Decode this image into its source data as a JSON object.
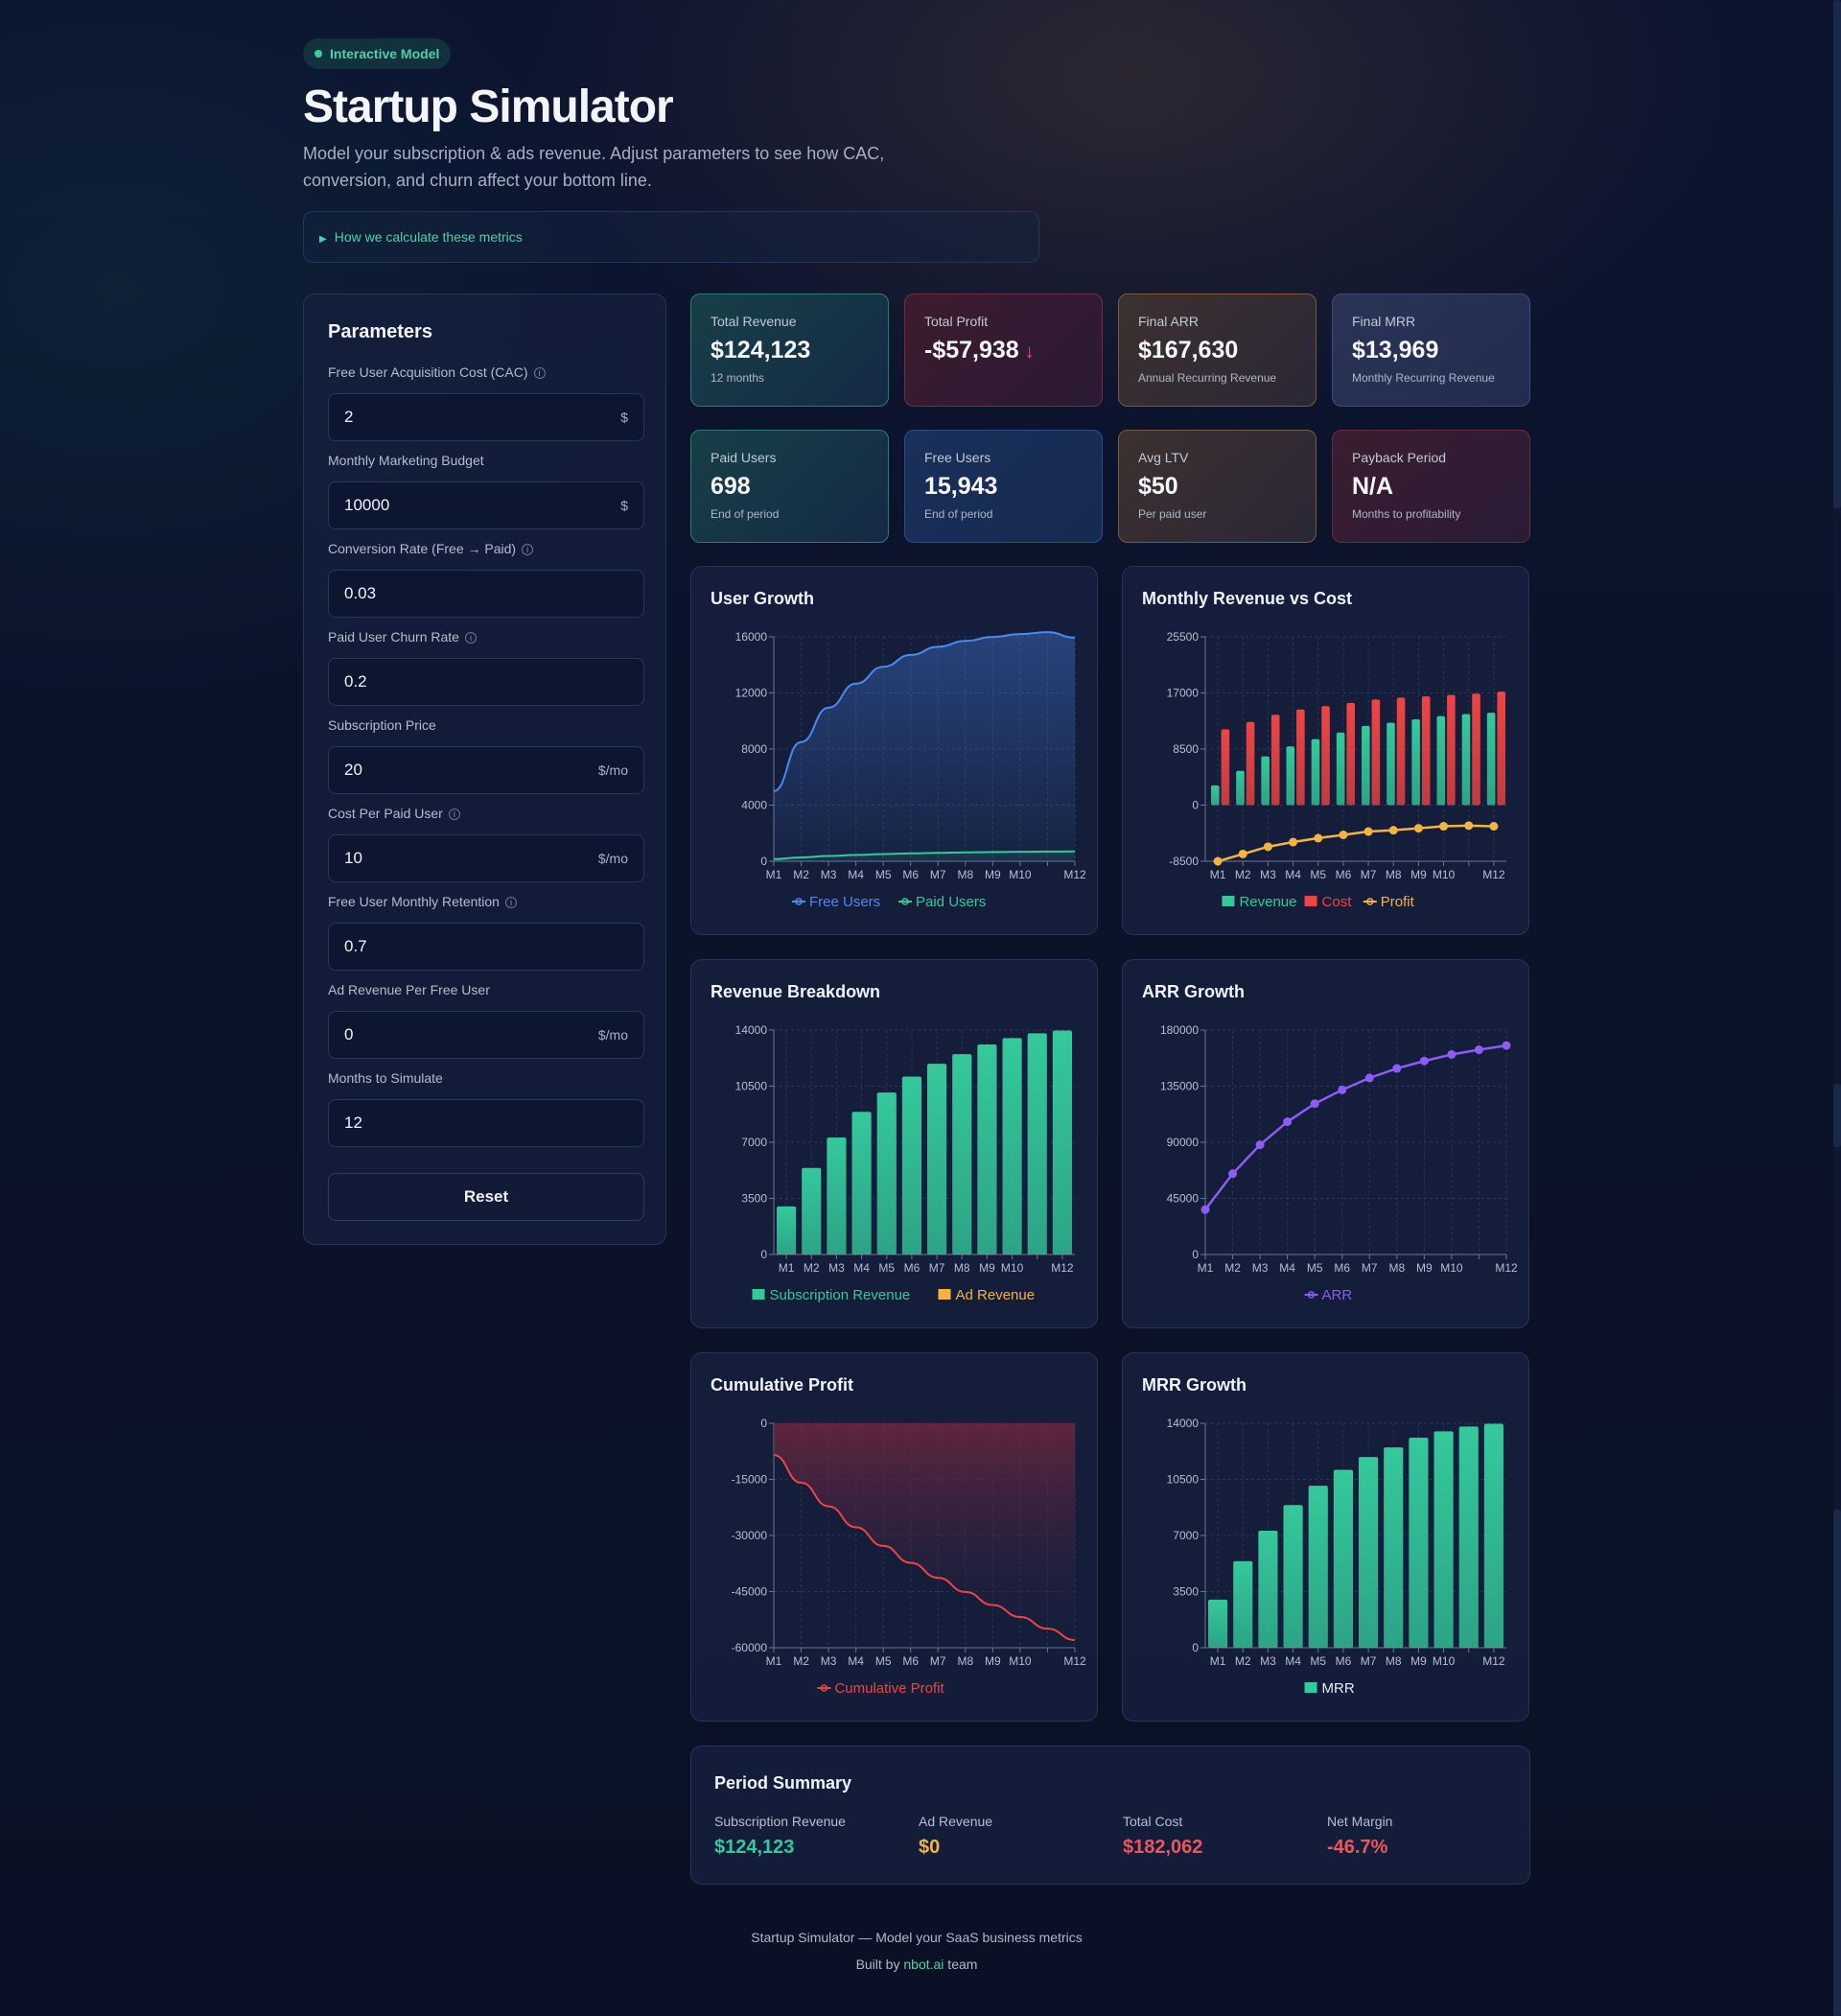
{
  "header": {
    "badge": "Interactive Model",
    "title": "Startup Simulator",
    "subtitle": "Model your subscription & ads revenue. Adjust parameters to see how CAC, conversion, and churn affect your bottom line.",
    "howto": "How we calculate these metrics"
  },
  "params": {
    "title": "Parameters",
    "fields": [
      {
        "label": "Free User Acquisition Cost (CAC)",
        "value": "2",
        "suffix": "$",
        "info": true
      },
      {
        "label": "Monthly Marketing Budget",
        "value": "10000",
        "suffix": "$",
        "info": false
      },
      {
        "label": "Conversion Rate (Free → Paid)",
        "value": "0.03",
        "suffix": "",
        "info": true
      },
      {
        "label": "Paid User Churn Rate",
        "value": "0.2",
        "suffix": "",
        "info": true
      },
      {
        "label": "Subscription Price",
        "value": "20",
        "suffix": "$/mo",
        "info": false
      },
      {
        "label": "Cost Per Paid User",
        "value": "10",
        "suffix": "$/mo",
        "info": true
      },
      {
        "label": "Free User Monthly Retention",
        "value": "0.7",
        "suffix": "",
        "info": true
      },
      {
        "label": "Ad Revenue Per Free User",
        "value": "0",
        "suffix": "$/mo",
        "info": false
      },
      {
        "label": "Months to Simulate",
        "value": "12",
        "suffix": "",
        "info": false
      }
    ],
    "reset": "Reset"
  },
  "cards": [
    {
      "label": "Total Revenue",
      "value": "$124,123",
      "sub": "12 months",
      "tone": "teal"
    },
    {
      "label": "Total Profit",
      "value": "-$57,938",
      "sub": "",
      "tone": "red",
      "arrow": "↓"
    },
    {
      "label": "Final ARR",
      "value": "$167,630",
      "sub": "Annual Recurring Revenue",
      "tone": "amber"
    },
    {
      "label": "Final MRR",
      "value": "$13,969",
      "sub": "Monthly Recurring Revenue",
      "tone": "slate"
    },
    {
      "label": "Paid Users",
      "value": "698",
      "sub": "End of period",
      "tone": "teal"
    },
    {
      "label": "Free Users",
      "value": "15,943",
      "sub": "End of period",
      "tone": "blue"
    },
    {
      "label": "Avg LTV",
      "value": "$50",
      "sub": "Per paid user",
      "tone": "amber"
    },
    {
      "label": "Payback Period",
      "value": "N/A",
      "sub": "Months to profitability",
      "tone": "rose"
    }
  ],
  "colors": {
    "teal": "#34c99b",
    "red": "#ef4444",
    "amber": "#f5b342",
    "blue": "#4a8bf0",
    "purple": "#8b5cf6",
    "bg": "#0b1329"
  },
  "chart_data": [
    {
      "id": "user-growth",
      "type": "area",
      "title": "User Growth",
      "x": [
        "M1",
        "M2",
        "M3",
        "M4",
        "M5",
        "M6",
        "M7",
        "M8",
        "M9",
        "M10",
        "M11",
        "M12"
      ],
      "x_ticks_shown": [
        "M1",
        "M2",
        "M3",
        "M4",
        "M5",
        "M6",
        "M7",
        "M8",
        "M9",
        "M10",
        "M12"
      ],
      "ylim": [
        0,
        16000
      ],
      "yticks": [
        0,
        4000,
        8000,
        12000,
        16000
      ],
      "series": [
        {
          "name": "Free Users",
          "values": [
            5000,
            8500,
            10950,
            12665,
            13866,
            14706,
            15294,
            15706,
            15994,
            16196,
            16337,
            15943
          ],
          "color": "#4a8bf0"
        },
        {
          "name": "Paid Users",
          "values": [
            150,
            275,
            373,
            450,
            512,
            561,
            600,
            632,
            657,
            677,
            692,
            698
          ],
          "color": "#34c99b"
        }
      ]
    },
    {
      "id": "revenue-vs-cost",
      "type": "bar",
      "title": "Monthly Revenue vs Cost",
      "x": [
        "M1",
        "M2",
        "M3",
        "M4",
        "M5",
        "M6",
        "M7",
        "M8",
        "M9",
        "M10",
        "M11",
        "M12"
      ],
      "x_ticks_shown": [
        "M1",
        "M2",
        "M3",
        "M4",
        "M5",
        "M6",
        "M7",
        "M8",
        "M9",
        "M10",
        "M12"
      ],
      "ylim": [
        -8500,
        25500
      ],
      "yticks": [
        -8500,
        0,
        8500,
        17000,
        25500
      ],
      "series": [
        {
          "name": "Revenue",
          "type": "bar",
          "values": [
            3000,
            5200,
            7400,
            8900,
            10000,
            11000,
            12000,
            12500,
            13000,
            13500,
            13800,
            14000
          ],
          "color": "#34c99b"
        },
        {
          "name": "Cost",
          "type": "bar",
          "values": [
            11500,
            12600,
            13700,
            14500,
            15000,
            15500,
            16000,
            16300,
            16500,
            16700,
            16900,
            17200
          ],
          "color": "#ef4444"
        },
        {
          "name": "Profit",
          "type": "line",
          "values": [
            -8500,
            -7400,
            -6300,
            -5600,
            -5000,
            -4500,
            -4000,
            -3800,
            -3500,
            -3200,
            -3100,
            -3200
          ],
          "color": "#f5b342"
        }
      ]
    },
    {
      "id": "revenue-breakdown",
      "type": "bar",
      "title": "Revenue Breakdown",
      "x": [
        "M1",
        "M2",
        "M3",
        "M4",
        "M5",
        "M6",
        "M7",
        "M8",
        "M9",
        "M10",
        "M11",
        "M12"
      ],
      "x_ticks_shown": [
        "M1",
        "M2",
        "M3",
        "M4",
        "M5",
        "M6",
        "M7",
        "M8",
        "M9",
        "M10",
        "M12"
      ],
      "ylim": [
        0,
        14000
      ],
      "yticks": [
        0,
        3500,
        7000,
        10500,
        14000
      ],
      "series": [
        {
          "name": "Subscription Revenue",
          "values": [
            3000,
            5400,
            7300,
            8900,
            10100,
            11100,
            11900,
            12500,
            13100,
            13500,
            13800,
            13969
          ],
          "color": "#34c99b"
        },
        {
          "name": "Ad Revenue",
          "values": [
            0,
            0,
            0,
            0,
            0,
            0,
            0,
            0,
            0,
            0,
            0,
            0
          ],
          "color": "#f5b342"
        }
      ]
    },
    {
      "id": "arr-growth",
      "type": "line",
      "title": "ARR Growth",
      "x": [
        "M1",
        "M2",
        "M3",
        "M4",
        "M5",
        "M6",
        "M7",
        "M8",
        "M9",
        "M10",
        "M11",
        "M12"
      ],
      "x_ticks_shown": [
        "M1",
        "M2",
        "M3",
        "M4",
        "M5",
        "M6",
        "M7",
        "M8",
        "M9",
        "M10",
        "M12"
      ],
      "ylim": [
        0,
        180000
      ],
      "yticks": [
        0,
        45000,
        90000,
        135000,
        180000
      ],
      "series": [
        {
          "name": "ARR",
          "values": [
            36000,
            64800,
            88000,
            106400,
            121000,
            132000,
            141600,
            149200,
            155200,
            160400,
            164200,
            167630
          ],
          "color": "#8b5cf6"
        }
      ]
    },
    {
      "id": "cumulative-profit",
      "type": "area",
      "title": "Cumulative Profit",
      "x": [
        "M1",
        "M2",
        "M3",
        "M4",
        "M5",
        "M6",
        "M7",
        "M8",
        "M9",
        "M10",
        "M11",
        "M12"
      ],
      "x_ticks_shown": [
        "M1",
        "M2",
        "M3",
        "M4",
        "M5",
        "M6",
        "M7",
        "M8",
        "M9",
        "M10",
        "M12"
      ],
      "ylim": [
        -60000,
        0
      ],
      "yticks": [
        -60000,
        -45000,
        -30000,
        -15000,
        0
      ],
      "series": [
        {
          "name": "Cumulative Profit",
          "values": [
            -8500,
            -15900,
            -22200,
            -27800,
            -32800,
            -37300,
            -41300,
            -45100,
            -48600,
            -51800,
            -54900,
            -57938
          ],
          "color": "#ef4444"
        }
      ]
    },
    {
      "id": "mrr-growth",
      "type": "bar",
      "title": "MRR Growth",
      "x": [
        "M1",
        "M2",
        "M3",
        "M4",
        "M5",
        "M6",
        "M7",
        "M8",
        "M9",
        "M10",
        "M11",
        "M12"
      ],
      "x_ticks_shown": [
        "M1",
        "M2",
        "M3",
        "M4",
        "M5",
        "M6",
        "M7",
        "M8",
        "M9",
        "M10",
        "M12"
      ],
      "ylim": [
        0,
        14000
      ],
      "yticks": [
        0,
        3500,
        7000,
        10500,
        14000
      ],
      "series": [
        {
          "name": "MRR",
          "values": [
            3000,
            5400,
            7300,
            8900,
            10100,
            11100,
            11900,
            12500,
            13100,
            13500,
            13800,
            13969
          ],
          "color": "#34c99b"
        }
      ]
    }
  ],
  "summary": {
    "title": "Period Summary",
    "items": [
      {
        "label": "Subscription Revenue",
        "value": "$124,123",
        "color": "#34c99b"
      },
      {
        "label": "Ad Revenue",
        "value": "$0",
        "color": "#f5b342"
      },
      {
        "label": "Total Cost",
        "value": "$182,062",
        "color": "#f0555e"
      },
      {
        "label": "Net Margin",
        "value": "-46.7%",
        "color": "#f0555e"
      }
    ]
  },
  "footer": {
    "line1": "Startup Simulator — Model your SaaS business metrics",
    "built_prefix": "Built by ",
    "built_link": "nbot.ai",
    "built_suffix": " team"
  }
}
